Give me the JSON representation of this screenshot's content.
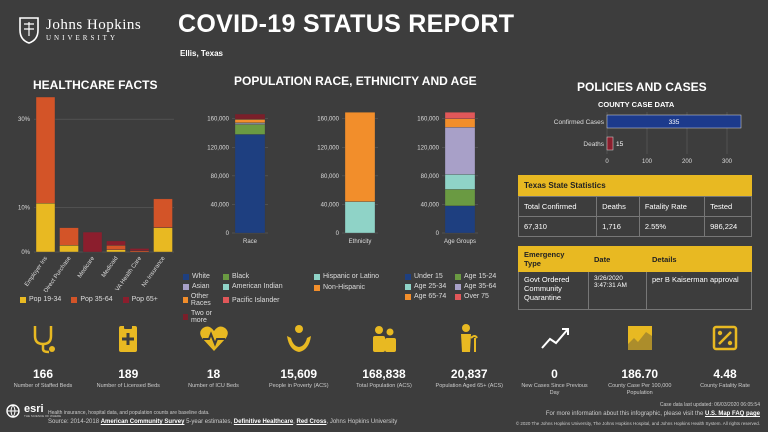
{
  "header": {
    "logo_line1": "Johns Hopkins",
    "logo_line2": "UNIVERSITY",
    "title": "COVID-19 STATUS REPORT",
    "location": "Ellis, Texas"
  },
  "healthcare": {
    "title": "HEALTHCARE FACTS",
    "legend": [
      "Pop 19-34",
      "Pop 35-64",
      "Pop 65+"
    ],
    "colors": {
      "pop19_34": "#e8b922",
      "pop35_64": "#d35428",
      "pop65": "#8b1e2d"
    }
  },
  "population": {
    "title": "POPULATION RACE, ETHNICITY AND AGE",
    "race_legend": [
      "White",
      "Black",
      "Asian",
      "American Indian",
      "Other Races",
      "Pacific Islander",
      "Two or more"
    ],
    "ethnicity_legend": [
      "Hispanic or Latino",
      "Non-Hispanic"
    ],
    "age_legend": [
      "Under 15",
      "Age 15-24",
      "Age 25-34",
      "Age 35-64",
      "Age 65-74",
      "Over 75"
    ]
  },
  "policies": {
    "title": "POLICIES AND CASES",
    "county_title": "COUNTY CASE DATA",
    "state_title": "Texas State Statistics",
    "state_headers": [
      "Total Confirmed",
      "Deaths",
      "Fatality Rate",
      "Tested"
    ],
    "state_values": [
      "67,310",
      "1,716",
      "2.55%",
      "986,224"
    ],
    "emergency_headers": [
      "Emergency Type",
      "Date",
      "Details"
    ],
    "emergency_type": "Govt Ordered Community Quarantine",
    "emergency_date": "3/26/2020 3:47:31 AM",
    "emergency_details": "per B Kaiserman approval"
  },
  "stats": [
    {
      "value": "166",
      "label": "Number of Staffed Beds",
      "icon": "stethoscope-icon"
    },
    {
      "value": "189",
      "label": "Number of Licensed Beds",
      "icon": "clipboard-icon"
    },
    {
      "value": "18",
      "label": "Number of ICU Beds",
      "icon": "heart-pulse-icon"
    },
    {
      "value": "15,609",
      "label": "People in Poverty (ACS)",
      "icon": "hands-icon"
    },
    {
      "value": "168,838",
      "label": "Total Population (ACS)",
      "icon": "people-icon"
    },
    {
      "value": "20,837",
      "label": "Population Aged 65+ (ACS)",
      "icon": "elderly-icon"
    },
    {
      "value": "0",
      "label": "New Cases Since Previous Day",
      "icon": "trend-icon"
    },
    {
      "value": "186.70",
      "label": "County Case Per 100,000 Population",
      "icon": "map-icon"
    },
    {
      "value": "4.48",
      "label": "County Fatality Rate",
      "icon": "percent-icon"
    }
  ],
  "footer": {
    "esri": "esri",
    "esri_sub": "THE SCIENCE OF WHERE",
    "note": "Health insurance, hospital data, and population counts are baseline data.",
    "source_prefix": "Source: 2014-2018",
    "src1": "American Community Survey",
    "src1_suffix": "5-year estimates,",
    "src2": "Definitive Healthcare",
    "src3": "Red Cross",
    "src_suffix": ", Johns Hopkins University",
    "updated": "Case data last updated: 06/03/2020 06:05:54",
    "more_info_prefix": "For more information about this infographic, please visit the",
    "faq": "U.S. Map FAQ page",
    "copyright": "© 2020 The Johns Hopkins University, The Johns Hopkins Hospital, and Johns Hopkins Health System. All rights reserved."
  },
  "chart_data": [
    {
      "type": "bar",
      "title": "HEALTHCARE FACTS",
      "categories": [
        "Employer Ins",
        "Direct Purchase",
        "Medicare",
        "Medicaid",
        "VA Health Care",
        "No Insurance"
      ],
      "series": [
        {
          "name": "Pop 19-34",
          "values": [
            11,
            1.5,
            0,
            0.5,
            0,
            5.5
          ]
        },
        {
          "name": "Pop 35-64",
          "values": [
            24,
            4,
            0,
            1,
            0.3,
            6.5
          ]
        },
        {
          "name": "Pop 65+",
          "values": [
            0,
            0,
            4.5,
            1,
            0.5,
            0
          ]
        }
      ],
      "yticks": [
        "0%",
        "10%",
        "30%"
      ],
      "ylim": [
        0,
        35
      ]
    },
    {
      "type": "bar",
      "xlabel": "Race",
      "yticks": [
        "0",
        "40,000",
        "80,000",
        "120,000",
        "160,000"
      ],
      "ylim": [
        0,
        175000
      ],
      "series": [
        {
          "name": "White",
          "values": [
            138000
          ]
        },
        {
          "name": "Black",
          "values": [
            14000
          ]
        },
        {
          "name": "Asian",
          "values": [
            1500
          ]
        },
        {
          "name": "American Indian",
          "values": [
            1000
          ]
        },
        {
          "name": "Other Races",
          "values": [
            4500
          ]
        },
        {
          "name": "Pacific Islander",
          "values": [
            500
          ]
        },
        {
          "name": "Two or more",
          "values": [
            7000
          ]
        }
      ]
    },
    {
      "type": "bar",
      "xlabel": "Ethnicity",
      "yticks": [
        "0",
        "40,000",
        "80,000",
        "120,000",
        "160,000"
      ],
      "ylim": [
        0,
        175000
      ],
      "series": [
        {
          "name": "Hispanic or Latino",
          "values": [
            44000
          ]
        },
        {
          "name": "Non-Hispanic",
          "values": [
            125000
          ]
        }
      ]
    },
    {
      "type": "bar",
      "xlabel": "Age Groups",
      "yticks": [
        "0",
        "40,000",
        "80,000",
        "120,000",
        "160,000"
      ],
      "ylim": [
        0,
        175000
      ],
      "series": [
        {
          "name": "Under 15",
          "values": [
            38000
          ]
        },
        {
          "name": "Age 15-24",
          "values": [
            23000
          ]
        },
        {
          "name": "Age 25-34",
          "values": [
            21000
          ]
        },
        {
          "name": "Age 35-64",
          "values": [
            66000
          ]
        },
        {
          "name": "Age 65-74",
          "values": [
            12000
          ]
        },
        {
          "name": "Over 75",
          "values": [
            9000
          ]
        }
      ]
    },
    {
      "type": "bar",
      "title": "COUNTY CASE DATA",
      "orientation": "horizontal",
      "categories": [
        "Confirmed Cases",
        "Deaths"
      ],
      "values": [
        335,
        15
      ],
      "xticks": [
        "0",
        "100",
        "200",
        "300"
      ],
      "xlim": [
        0,
        350
      ]
    }
  ]
}
